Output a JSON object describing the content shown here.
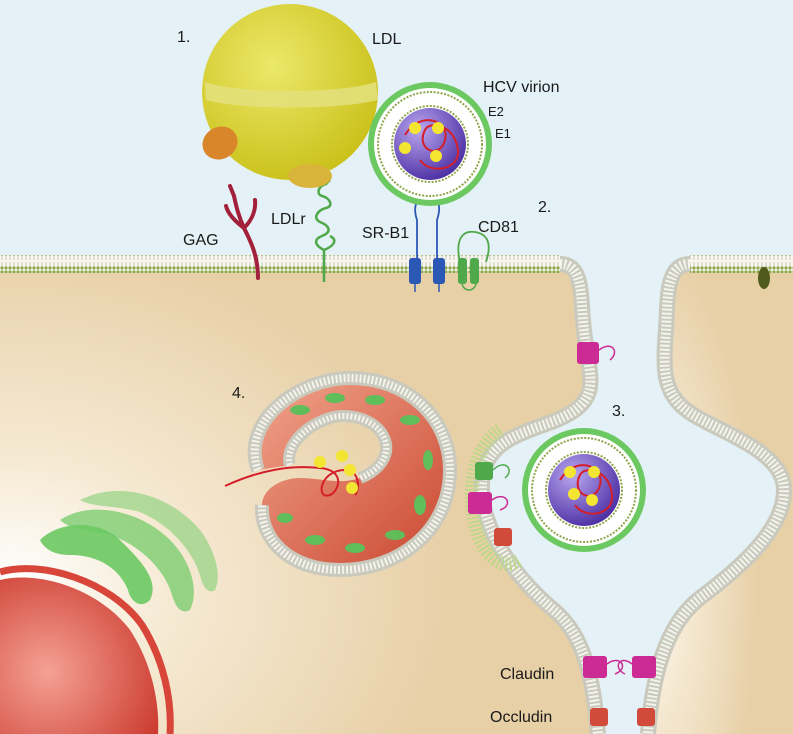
{
  "steps": {
    "step1": "1.",
    "step2": "2.",
    "step3": "3.",
    "step4": "4."
  },
  "labels": {
    "ldl": "LDL",
    "hcv_virion": "HCV virion",
    "e2": "E2",
    "e1": "E1",
    "gag": "GAG",
    "ldlr": "LDLr",
    "srb1": "SR-B1",
    "cd81": "CD81",
    "claudin": "Claudin",
    "occludin": "Occludin"
  },
  "colors": {
    "extracellular": "#e4f1f6",
    "cytoplasm": "#ecd7b4",
    "membrane_line": "#8ea04a",
    "ldl": "#d7d02a",
    "virion_core": "#6a4fbf",
    "envelope_green": "#5fbe5a",
    "claudin": "#cc2a95",
    "occludin": "#d24a3a",
    "gag": "#a3203a",
    "srb1": "#2b57b5",
    "nucleus": "#d8463a"
  }
}
